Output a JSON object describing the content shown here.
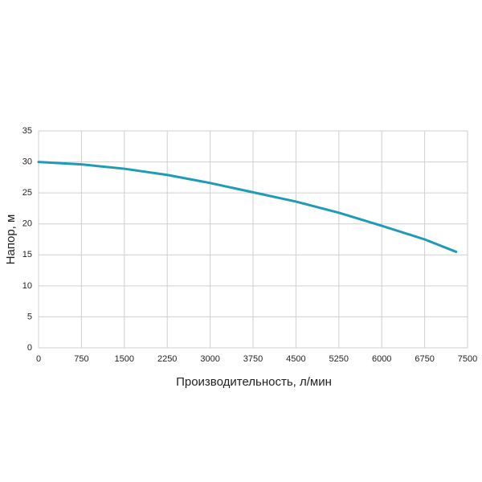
{
  "chart_data": {
    "type": "line",
    "x_label": "Производительность, л/мин",
    "y_label": "Напор, м",
    "x": [
      0,
      750,
      1500,
      2250,
      3000,
      3750,
      4500,
      5250,
      6000,
      6750,
      7300
    ],
    "series": [
      {
        "color": "#1f9bb6",
        "values": [
          30,
          29.6,
          28.9,
          27.9,
          26.6,
          25.1,
          23.6,
          21.8,
          19.7,
          17.5,
          15.5
        ]
      }
    ],
    "xlim": [
      0,
      7500
    ],
    "xticks": [
      0,
      750,
      1500,
      2250,
      3000,
      3750,
      4500,
      5250,
      6000,
      6750,
      7500
    ],
    "ylim": [
      0,
      35
    ],
    "yticks": [
      0,
      5,
      10,
      15,
      20,
      25,
      30,
      35
    ],
    "grid": true
  }
}
